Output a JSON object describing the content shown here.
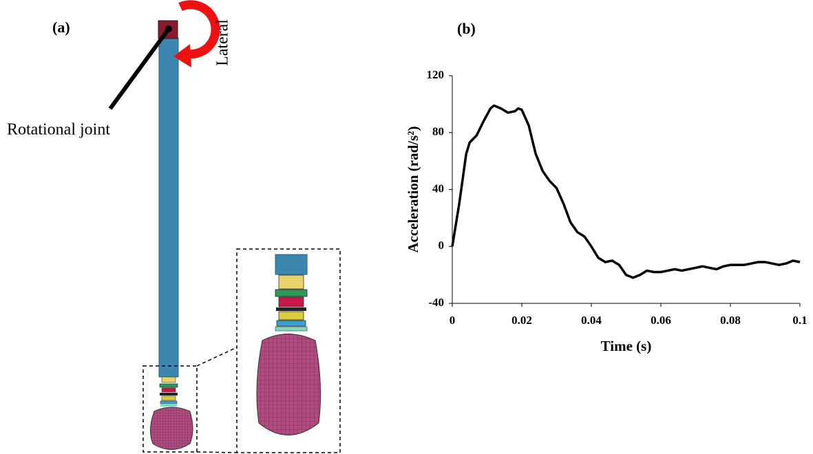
{
  "panel_labels": [
    "(a)",
    "(b)"
  ],
  "diagram": {
    "rotation_label": "Lateral",
    "joint_label": "Rotational joint"
  },
  "chart_data": {
    "type": "line",
    "x_label": "Time (s)",
    "y_label": "Acceleration (rad/s²)",
    "xlim": [
      0,
      0.1
    ],
    "xticks": [
      0,
      0.02,
      0.04,
      0.06,
      0.08,
      0.1
    ],
    "ylim": [
      -40,
      120
    ],
    "yticks": [
      -40,
      0,
      40,
      80,
      120
    ],
    "x": [
      0,
      0.002,
      0.004,
      0.005,
      0.007,
      0.009,
      0.011,
      0.012,
      0.014,
      0.016,
      0.018,
      0.019,
      0.02,
      0.022,
      0.024,
      0.026,
      0.028,
      0.03,
      0.032,
      0.034,
      0.036,
      0.038,
      0.04,
      0.042,
      0.044,
      0.046,
      0.048,
      0.05,
      0.052,
      0.054,
      0.056,
      0.058,
      0.06,
      0.062,
      0.064,
      0.066,
      0.068,
      0.07,
      0.072,
      0.074,
      0.076,
      0.078,
      0.08,
      0.082,
      0.084,
      0.086,
      0.088,
      0.09,
      0.092,
      0.094,
      0.096,
      0.098,
      0.1
    ],
    "series": [
      {
        "color": "#000000",
        "values": [
          0,
          30,
          65,
          73,
          78,
          88,
          97,
          99,
          97,
          94,
          95,
          97,
          96,
          85,
          65,
          53,
          46,
          41,
          30,
          17,
          10,
          7,
          0,
          -8,
          -11,
          -10,
          -13,
          -20,
          -22,
          -20,
          -17,
          -18,
          -18,
          -17,
          -16,
          -17,
          -16,
          -15,
          -14,
          -15,
          -16,
          -14,
          -13,
          -13,
          -13,
          -12,
          -11,
          -11,
          -12,
          -13,
          -12,
          -10,
          -11
        ]
      }
    ]
  }
}
